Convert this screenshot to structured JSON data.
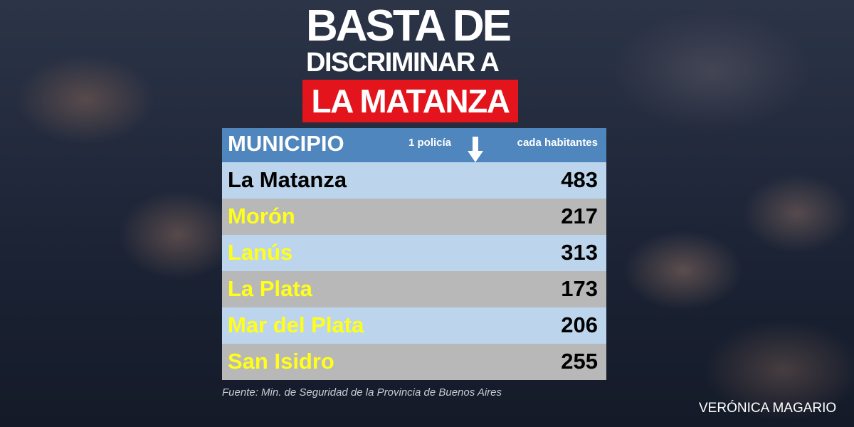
{
  "header": {
    "title_lines": [
      "BASTA DE",
      "DISCRIMINAR A"
    ],
    "highlight": "LA MATANZA"
  },
  "table": {
    "columns": {
      "name": "MUNICIPIO",
      "metric_top": "1 policía",
      "metric_bottom": "cada habitantes"
    },
    "rows": [
      [
        "La Matanza",
        483
      ],
      [
        "Morón",
        217
      ],
      [
        "Lanús",
        313
      ],
      [
        "La Plata",
        173
      ],
      [
        "Mar del Plata",
        206
      ],
      [
        "San Isidro",
        255
      ]
    ]
  },
  "source": "Fuente: Min. de Seguridad de la Provincia de Buenos Aires",
  "author": "VERÓNICA MAGARIO"
}
